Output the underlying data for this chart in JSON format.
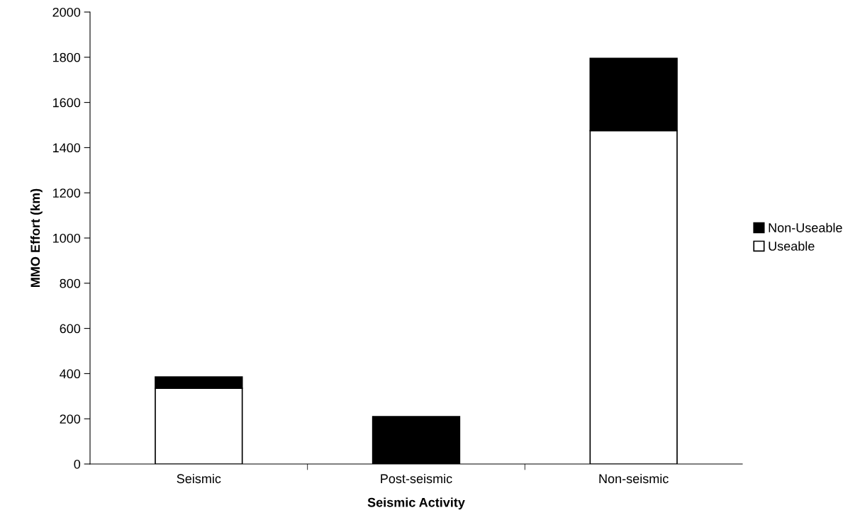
{
  "chart_data": {
    "type": "bar",
    "stacked": true,
    "xlabel": "Seismic Activity",
    "ylabel": "MMO Effort (km)",
    "categories": [
      "Seismic",
      "Post-seismic",
      "Non-seismic"
    ],
    "series": [
      {
        "name": "Useable",
        "color": "#ffffff",
        "values": [
          335,
          0,
          1475
        ]
      },
      {
        "name": "Non-Useable",
        "color": "#000000",
        "values": [
          50,
          210,
          320
        ]
      }
    ],
    "ylim": [
      0,
      2000
    ],
    "yticks": [
      0,
      200,
      400,
      600,
      800,
      1000,
      1200,
      1400,
      1600,
      1800,
      2000
    ],
    "grid": false,
    "legend": "right"
  }
}
